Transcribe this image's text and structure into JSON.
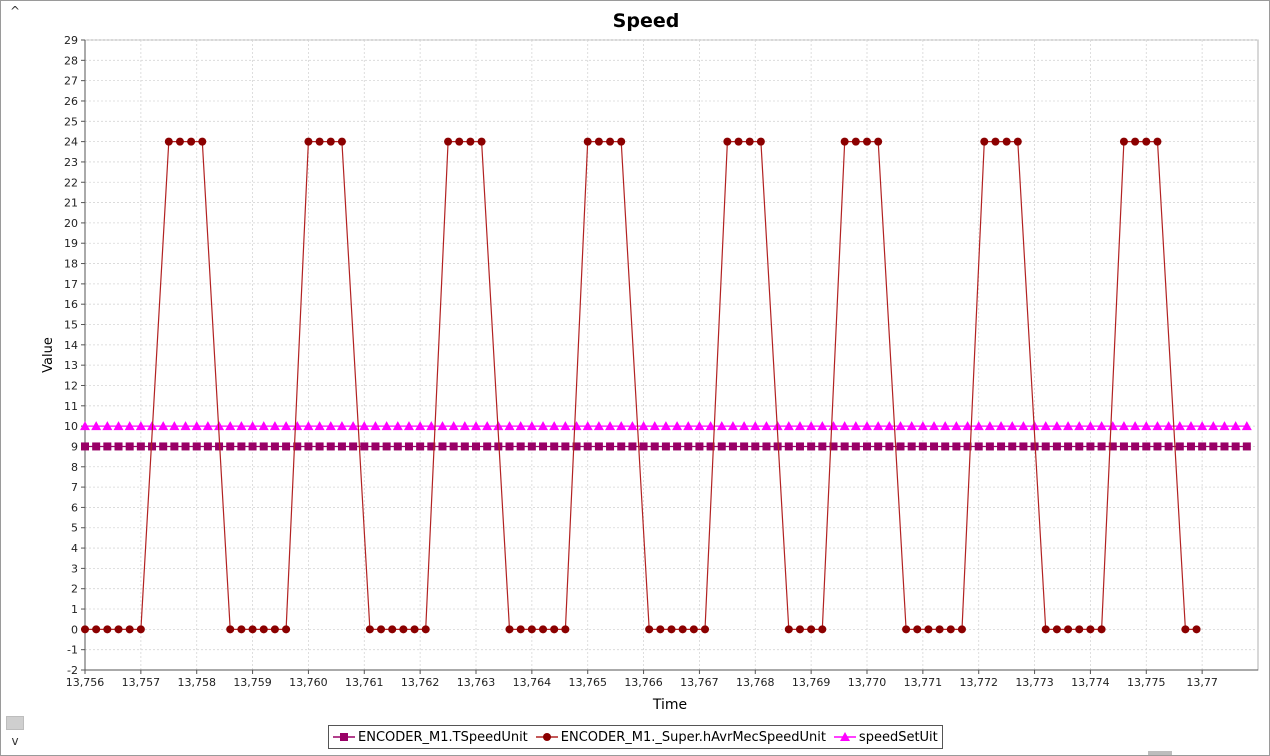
{
  "window": {
    "scroll_up_glyph": "^",
    "scroll_down_glyph": "v"
  },
  "chart_data": {
    "type": "line",
    "title": "Speed",
    "xlabel": "Time",
    "ylabel": "Value",
    "xlim": [
      13756,
      13777
    ],
    "ylim": [
      -2,
      29
    ],
    "grid": true,
    "legend_position": "bottom",
    "x_ticks": [
      "13,756",
      "13,757",
      "13,758",
      "13,759",
      "13,760",
      "13,761",
      "13,762",
      "13,763",
      "13,764",
      "13,765",
      "13,766",
      "13,767",
      "13,768",
      "13,769",
      "13,770",
      "13,771",
      "13,772",
      "13,773",
      "13,774",
      "13,775",
      "13,77"
    ],
    "y_ticks": [
      "-2",
      "-1",
      "0",
      "1",
      "2",
      "3",
      "4",
      "5",
      "6",
      "7",
      "8",
      "9",
      "10",
      "11",
      "12",
      "13",
      "14",
      "15",
      "16",
      "17",
      "18",
      "19",
      "20",
      "21",
      "22",
      "23",
      "24",
      "25",
      "26",
      "27",
      "28",
      "29"
    ],
    "series": [
      {
        "name": "ENCODER_M1.TSpeedUnit",
        "color": "#990066",
        "marker": "square",
        "x": [
          13756.0,
          13756.2,
          13756.4,
          13756.6,
          13756.8,
          13757.0,
          13757.2,
          13757.4,
          13757.6,
          13757.8,
          13758.0,
          13758.2,
          13758.4,
          13758.6,
          13758.8,
          13759.0,
          13759.2,
          13759.4,
          13759.6,
          13759.8,
          13760.0,
          13760.2,
          13760.4,
          13760.6,
          13760.8,
          13761.0,
          13761.2,
          13761.4,
          13761.6,
          13761.8,
          13762.0,
          13762.2,
          13762.4,
          13762.6,
          13762.8,
          13763.0,
          13763.2,
          13763.4,
          13763.6,
          13763.8,
          13764.0,
          13764.2,
          13764.4,
          13764.6,
          13764.8,
          13765.0,
          13765.2,
          13765.4,
          13765.6,
          13765.8,
          13766.0,
          13766.2,
          13766.4,
          13766.6,
          13766.8,
          13767.0,
          13767.2,
          13767.4,
          13767.6,
          13767.8,
          13768.0,
          13768.2,
          13768.4,
          13768.6,
          13768.8,
          13769.0,
          13769.2,
          13769.4,
          13769.6,
          13769.8,
          13770.0,
          13770.2,
          13770.4,
          13770.6,
          13770.8,
          13771.0,
          13771.2,
          13771.4,
          13771.6,
          13771.8,
          13772.0,
          13772.2,
          13772.4,
          13772.6,
          13772.8,
          13773.0,
          13773.2,
          13773.4,
          13773.6,
          13773.8,
          13774.0,
          13774.2,
          13774.4,
          13774.6,
          13774.8,
          13775.0,
          13775.2,
          13775.4,
          13775.6,
          13775.8,
          13776.0,
          13776.2,
          13776.4,
          13776.6,
          13776.8
        ],
        "values": [
          9,
          9,
          9,
          9,
          9,
          9,
          9,
          9,
          9,
          9,
          9,
          9,
          9,
          9,
          9,
          9,
          9,
          9,
          9,
          9,
          9,
          9,
          9,
          9,
          9,
          9,
          9,
          9,
          9,
          9,
          9,
          9,
          9,
          9,
          9,
          9,
          9,
          9,
          9,
          9,
          9,
          9,
          9,
          9,
          9,
          9,
          9,
          9,
          9,
          9,
          9,
          9,
          9,
          9,
          9,
          9,
          9,
          9,
          9,
          9,
          9,
          9,
          9,
          9,
          9,
          9,
          9,
          9,
          9,
          9,
          9,
          9,
          9,
          9,
          9,
          9,
          9,
          9,
          9,
          9,
          9,
          9,
          9,
          9,
          9,
          9,
          9,
          9,
          9,
          9,
          9,
          9,
          9,
          9,
          9,
          9,
          9,
          9,
          9,
          9,
          9,
          9,
          9,
          9,
          9
        ]
      },
      {
        "name": "ENCODER_M1._Super.hAvrMecSpeedUnit",
        "color": "#8b0000",
        "line_color": "#b22222",
        "marker": "circle",
        "x": [
          13756.0,
          13756.2,
          13756.4,
          13756.6,
          13756.8,
          13757.0,
          13757.5,
          13757.7,
          13757.9,
          13758.1,
          13758.6,
          13758.8,
          13759.0,
          13759.2,
          13759.4,
          13759.6,
          13760.0,
          13760.2,
          13760.4,
          13760.6,
          13761.1,
          13761.3,
          13761.5,
          13761.7,
          13761.9,
          13762.1,
          13762.5,
          13762.7,
          13762.9,
          13763.1,
          13763.6,
          13763.8,
          13764.0,
          13764.2,
          13764.4,
          13764.6,
          13765.0,
          13765.2,
          13765.4,
          13765.6,
          13766.1,
          13766.3,
          13766.5,
          13766.7,
          13766.9,
          13767.1,
          13767.5,
          13767.7,
          13767.9,
          13768.1,
          13768.6,
          13768.8,
          13769.0,
          13769.2,
          13769.6,
          13769.8,
          13770.0,
          13770.2,
          13770.7,
          13770.9,
          13771.1,
          13771.3,
          13771.5,
          13771.7,
          13772.1,
          13772.3,
          13772.5,
          13772.7,
          13773.2,
          13773.4,
          13773.6,
          13773.8,
          13774.0,
          13774.2,
          13774.6,
          13774.8,
          13775.0,
          13775.2,
          13775.7,
          13775.9
        ],
        "values": [
          0,
          0,
          0,
          0,
          0,
          0,
          24,
          24,
          24,
          24,
          0,
          0,
          0,
          0,
          0,
          0,
          24,
          24,
          24,
          24,
          0,
          0,
          0,
          0,
          0,
          0,
          24,
          24,
          24,
          24,
          0,
          0,
          0,
          0,
          0,
          0,
          24,
          24,
          24,
          24,
          0,
          0,
          0,
          0,
          0,
          0,
          24,
          24,
          24,
          24,
          0,
          0,
          0,
          0,
          24,
          24,
          24,
          24,
          0,
          0,
          0,
          0,
          0,
          0,
          24,
          24,
          24,
          24,
          0,
          0,
          0,
          0,
          0,
          0,
          24,
          24,
          24,
          24,
          0,
          0
        ]
      },
      {
        "name": "speedSetUit",
        "color": "#ff00ff",
        "marker": "triangle",
        "x": [
          13756.0,
          13756.2,
          13756.4,
          13756.6,
          13756.8,
          13757.0,
          13757.2,
          13757.4,
          13757.6,
          13757.8,
          13758.0,
          13758.2,
          13758.4,
          13758.6,
          13758.8,
          13759.0,
          13759.2,
          13759.4,
          13759.6,
          13759.8,
          13760.0,
          13760.2,
          13760.4,
          13760.6,
          13760.8,
          13761.0,
          13761.2,
          13761.4,
          13761.6,
          13761.8,
          13762.0,
          13762.2,
          13762.4,
          13762.6,
          13762.8,
          13763.0,
          13763.2,
          13763.4,
          13763.6,
          13763.8,
          13764.0,
          13764.2,
          13764.4,
          13764.6,
          13764.8,
          13765.0,
          13765.2,
          13765.4,
          13765.6,
          13765.8,
          13766.0,
          13766.2,
          13766.4,
          13766.6,
          13766.8,
          13767.0,
          13767.2,
          13767.4,
          13767.6,
          13767.8,
          13768.0,
          13768.2,
          13768.4,
          13768.6,
          13768.8,
          13769.0,
          13769.2,
          13769.4,
          13769.6,
          13769.8,
          13770.0,
          13770.2,
          13770.4,
          13770.6,
          13770.8,
          13771.0,
          13771.2,
          13771.4,
          13771.6,
          13771.8,
          13772.0,
          13772.2,
          13772.4,
          13772.6,
          13772.8,
          13773.0,
          13773.2,
          13773.4,
          13773.6,
          13773.8,
          13774.0,
          13774.2,
          13774.4,
          13774.6,
          13774.8,
          13775.0,
          13775.2,
          13775.4,
          13775.6,
          13775.8,
          13776.0,
          13776.2,
          13776.4,
          13776.6,
          13776.8
        ],
        "values": [
          10,
          10,
          10,
          10,
          10,
          10,
          10,
          10,
          10,
          10,
          10,
          10,
          10,
          10,
          10,
          10,
          10,
          10,
          10,
          10,
          10,
          10,
          10,
          10,
          10,
          10,
          10,
          10,
          10,
          10,
          10,
          10,
          10,
          10,
          10,
          10,
          10,
          10,
          10,
          10,
          10,
          10,
          10,
          10,
          10,
          10,
          10,
          10,
          10,
          10,
          10,
          10,
          10,
          10,
          10,
          10,
          10,
          10,
          10,
          10,
          10,
          10,
          10,
          10,
          10,
          10,
          10,
          10,
          10,
          10,
          10,
          10,
          10,
          10,
          10,
          10,
          10,
          10,
          10,
          10,
          10,
          10,
          10,
          10,
          10,
          10,
          10,
          10,
          10,
          10,
          10,
          10,
          10,
          10,
          10,
          10,
          10,
          10,
          10,
          10,
          10,
          10,
          10,
          10,
          10
        ]
      }
    ]
  }
}
